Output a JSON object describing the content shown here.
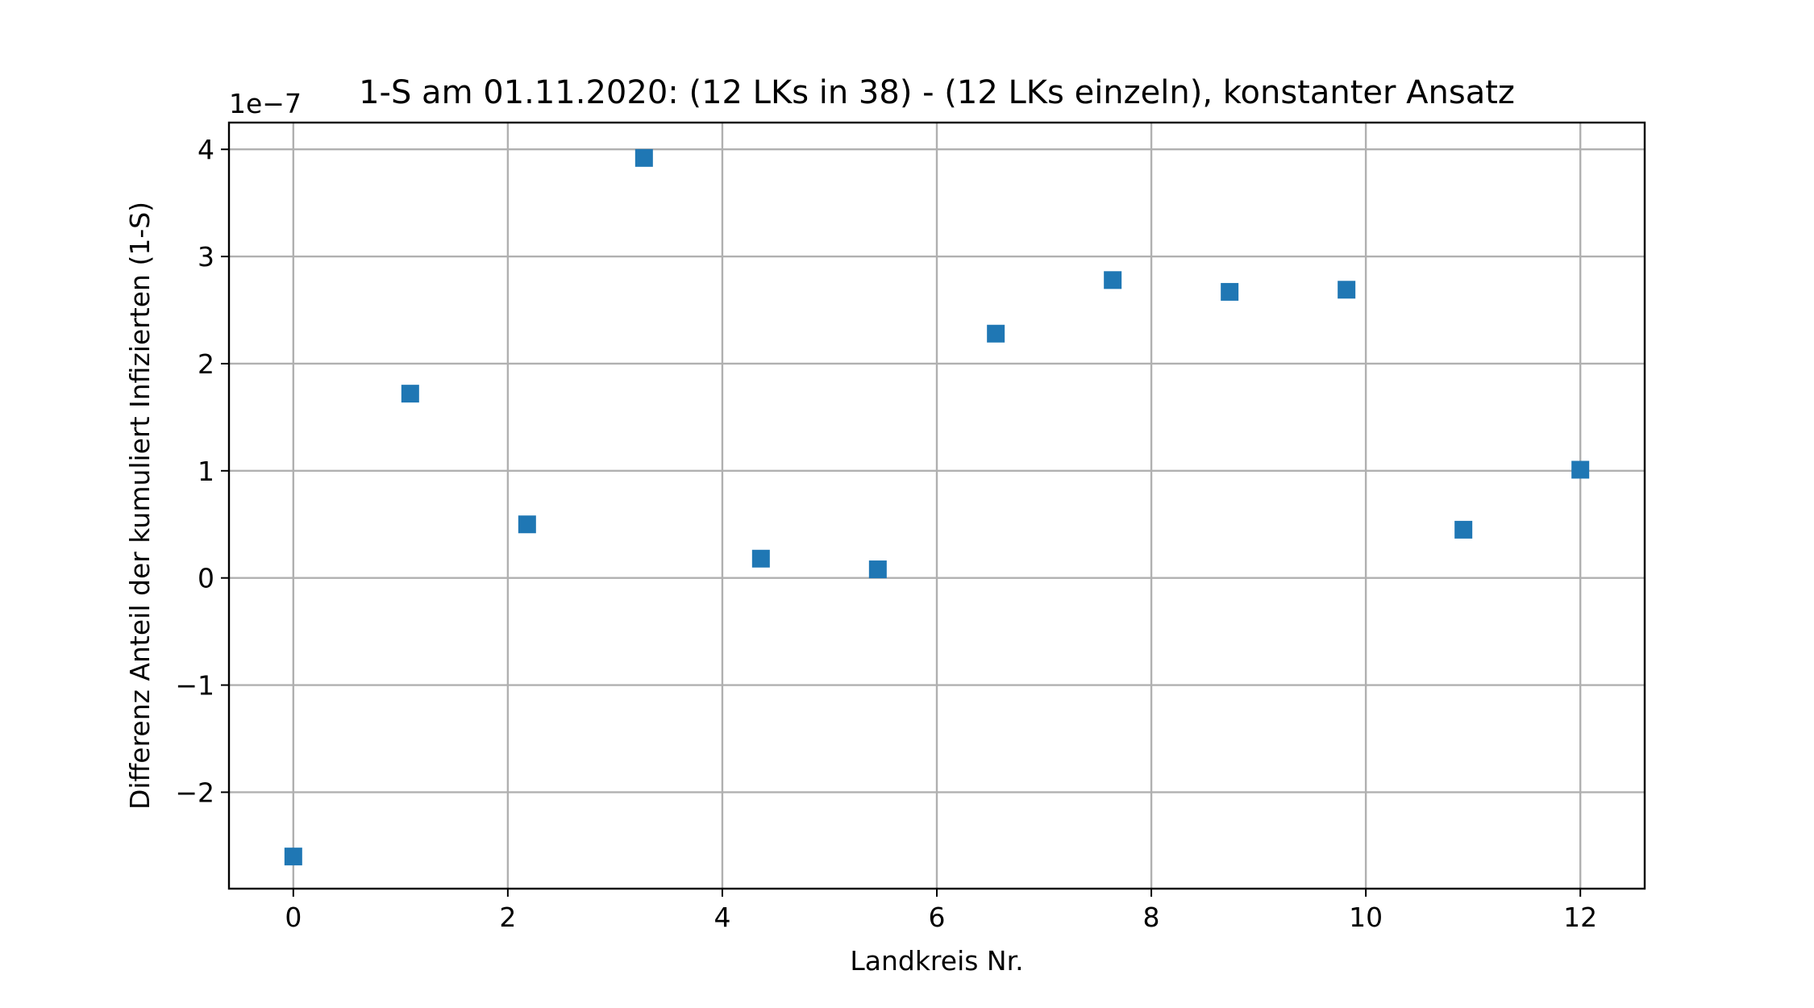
{
  "chart_data": {
    "type": "scatter",
    "title": "1-S am 01.11.2020: (12 LKs in 38) - (12 LKs einzeln), konstanter Ansatz",
    "xlabel": "Landkreis Nr.",
    "ylabel": "Differenz Anteil der kumuliert Infizierten (1-S)",
    "y_offset_label": "1e−7",
    "xlim": [
      -0.6,
      12.6
    ],
    "ylim": [
      -2.9,
      4.25
    ],
    "xticks": [
      0,
      2,
      4,
      6,
      8,
      10,
      12
    ],
    "yticks": [
      -2,
      -1,
      0,
      1,
      2,
      3,
      4
    ],
    "xtick_labels": [
      "0",
      "2",
      "4",
      "6",
      "8",
      "10",
      "12"
    ],
    "ytick_labels": [
      "−2",
      "−1",
      "0",
      "1",
      "2",
      "3",
      "4"
    ],
    "grid": true,
    "marker": "square",
    "color": "#1f77b4",
    "series": [
      {
        "x": [
          0.0,
          1.09,
          2.18,
          3.27,
          4.36,
          5.45,
          6.55,
          7.64,
          8.73,
          9.82,
          10.91,
          12.0
        ],
        "y": [
          -2.6,
          1.72,
          0.5,
          3.92,
          0.18,
          0.08,
          2.28,
          2.78,
          2.67,
          2.69,
          0.45,
          1.01
        ]
      }
    ]
  }
}
